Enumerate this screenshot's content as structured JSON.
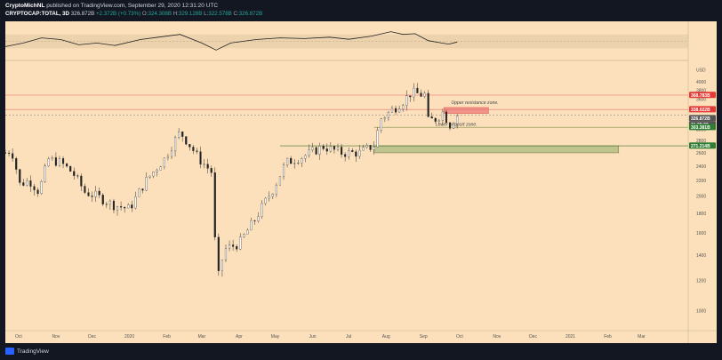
{
  "header": {
    "author": "CryptoMichNL",
    "published": "published on TradingView.com, September 29, 2020 12:31:20 UTC",
    "symbol": "CRYPTOCAP:TOTAL, 3D",
    "last": "326.872B",
    "change": "+2.372B (+0.73%)",
    "ohlc": [
      {
        "k": "O:",
        "v": "324.308B"
      },
      {
        "k": "H:",
        "v": "329.128B"
      },
      {
        "k": "L:",
        "v": "322.578B"
      },
      {
        "k": "C:",
        "v": "326.872B"
      }
    ]
  },
  "footer": {
    "brand": "TradingView"
  },
  "colors": {
    "background": "#fbe0bb",
    "rsi_band": "#ecd2ad",
    "resistance_line": "#f28c84",
    "resistance_tag": "#e53935",
    "support_tag": "#2e7d32",
    "price_tag": "#555555",
    "zone_red": "#f28c84",
    "zone_green": "#b9c08a"
  },
  "chart_data": {
    "type": "candlestick",
    "symbol": "CRYPTOCAP:TOTAL",
    "interval": "3D",
    "scale": "log",
    "ylim": [
      900,
      4500
    ],
    "rsi_ylim": [
      0,
      100
    ],
    "rsi_ticks": [
      "75.00",
      "50.00",
      "25.00"
    ],
    "rsi_band": [
      30,
      70
    ],
    "y_ticks": [
      {
        "label": "USD",
        "value": 4300
      },
      {
        "label": "4000",
        "value": 4000
      },
      {
        "label": "3800",
        "value": 3800
      },
      {
        "label": "3600",
        "value": 3600
      },
      {
        "label": "3400",
        "value": 3400
      },
      {
        "label": "3200",
        "value": 3200
      },
      {
        "label": "3000",
        "value": 3000
      },
      {
        "label": "2800",
        "value": 2800
      },
      {
        "label": "2600",
        "value": 2600
      },
      {
        "label": "2400",
        "value": 2400
      },
      {
        "label": "2200",
        "value": 2200
      },
      {
        "label": "2000",
        "value": 2000
      },
      {
        "label": "1800",
        "value": 1800
      },
      {
        "label": "1600",
        "value": 1600
      },
      {
        "label": "1400",
        "value": 1400
      },
      {
        "label": "1200",
        "value": 1200
      },
      {
        "label": "1000",
        "value": 1000
      }
    ],
    "x_ticks": [
      "Oct",
      "Nov",
      "Dec",
      "2020",
      "Feb",
      "Mar",
      "Apr",
      "May",
      "Jun",
      "Jul",
      "Aug",
      "Sep",
      "Oct",
      "Nov",
      "Dec",
      "2021",
      "Feb",
      "Mar"
    ],
    "price_tags": [
      {
        "label": "368.783B",
        "value": 3687,
        "kind": "resistance"
      },
      {
        "label": "338.022B",
        "value": 3380,
        "kind": "resistance"
      },
      {
        "label": "326.872B",
        "value": 3269,
        "kind": "price"
      },
      {
        "label": "11:28:39",
        "value": 3180,
        "kind": "price"
      },
      {
        "label": "303.381B",
        "value": 3034,
        "kind": "support"
      },
      {
        "label": "271.214B",
        "value": 2712,
        "kind": "support"
      }
    ],
    "zones": [
      {
        "label": "Upper resistance zone.",
        "low": 3300,
        "high": 3420,
        "kind": "red"
      },
      {
        "label": "Lower support zone.",
        "low": 2600,
        "high": 2712,
        "kind": "green"
      }
    ],
    "price_path": [
      [
        "2019-09-20",
        2600
      ],
      [
        "2019-09-25",
        2650
      ],
      [
        "2019-10-02",
        2150
      ],
      [
        "2019-10-10",
        2200
      ],
      [
        "2019-10-18",
        2050
      ],
      [
        "2019-10-26",
        2500
      ],
      [
        "2019-11-05",
        2450
      ],
      [
        "2019-11-15",
        2300
      ],
      [
        "2019-11-25",
        2050
      ],
      [
        "2019-12-05",
        2000
      ],
      [
        "2019-12-18",
        1900
      ],
      [
        "2020-01-01",
        1850
      ],
      [
        "2020-01-15",
        2200
      ],
      [
        "2020-01-30",
        2500
      ],
      [
        "2020-02-12",
        2950
      ],
      [
        "2020-02-28",
        2500
      ],
      [
        "2020-03-10",
        2300
      ],
      [
        "2020-03-13",
        1150
      ],
      [
        "2020-03-20",
        1450
      ],
      [
        "2020-04-01",
        1500
      ],
      [
        "2020-04-15",
        1750
      ],
      [
        "2020-04-30",
        2100
      ],
      [
        "2020-05-10",
        2450
      ],
      [
        "2020-05-25",
        2550
      ],
      [
        "2020-06-10",
        2700
      ],
      [
        "2020-06-25",
        2600
      ],
      [
        "2020-07-10",
        2600
      ],
      [
        "2020-07-22",
        2720
      ],
      [
        "2020-07-28",
        3200
      ],
      [
        "2020-08-05",
        3350
      ],
      [
        "2020-08-15",
        3550
      ],
      [
        "2020-08-22",
        3750
      ],
      [
        "2020-08-30",
        3700
      ],
      [
        "2020-09-02",
        3700
      ],
      [
        "2020-09-05",
        3150
      ],
      [
        "2020-09-12",
        3200
      ],
      [
        "2020-09-18",
        3350
      ],
      [
        "2020-09-22",
        3050
      ],
      [
        "2020-09-29",
        3270
      ]
    ],
    "rsi_path": [
      [
        "2019-09-20",
        35
      ],
      [
        "2019-10-05",
        45
      ],
      [
        "2019-10-20",
        60
      ],
      [
        "2019-11-05",
        55
      ],
      [
        "2019-11-20",
        40
      ],
      [
        "2019-12-05",
        45
      ],
      [
        "2019-12-20",
        38
      ],
      [
        "2020-01-10",
        55
      ],
      [
        "2020-01-25",
        62
      ],
      [
        "2020-02-12",
        70
      ],
      [
        "2020-03-01",
        45
      ],
      [
        "2020-03-13",
        25
      ],
      [
        "2020-03-25",
        45
      ],
      [
        "2020-04-15",
        55
      ],
      [
        "2020-05-05",
        60
      ],
      [
        "2020-05-25",
        58
      ],
      [
        "2020-06-15",
        62
      ],
      [
        "2020-07-01",
        56
      ],
      [
        "2020-07-20",
        65
      ],
      [
        "2020-08-05",
        78
      ],
      [
        "2020-08-15",
        70
      ],
      [
        "2020-08-25",
        72
      ],
      [
        "2020-09-05",
        52
      ],
      [
        "2020-09-15",
        46
      ],
      [
        "2020-09-22",
        42
      ],
      [
        "2020-09-29",
        48
      ]
    ]
  }
}
